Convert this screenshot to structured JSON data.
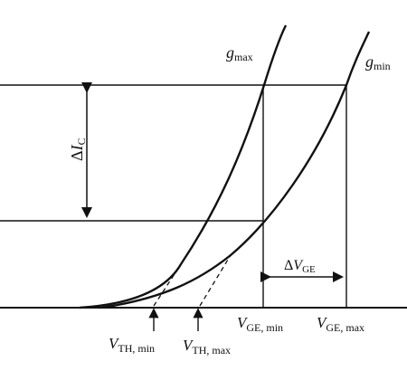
{
  "diagram": {
    "curves": {
      "g_max": {
        "symbol": "g",
        "sub": "max"
      },
      "g_min": {
        "symbol": "g",
        "sub": "min"
      }
    },
    "labels": {
      "delta_ic": {
        "prefix": "Δ",
        "symbol": "I",
        "sub": "C"
      },
      "delta_vge": {
        "prefix": "Δ",
        "symbol": "V",
        "sub": "GE"
      },
      "vge_min": {
        "symbol": "V",
        "sub": "GE, min"
      },
      "vge_max": {
        "symbol": "V",
        "sub": "GE, max"
      },
      "vth_min": {
        "symbol": "V",
        "sub": "TH, min"
      },
      "vth_max": {
        "symbol": "V",
        "sub": "TH, max"
      }
    },
    "line_color": "#111111"
  }
}
